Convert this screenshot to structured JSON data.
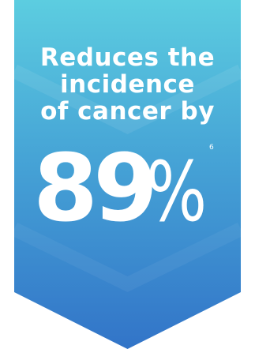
{
  "banner": {
    "headline_lines": [
      "Reduces the",
      "incidence",
      "of cancer by"
    ],
    "stat_value": "89",
    "stat_unit": "%",
    "footnote_ref": "6",
    "colors": {
      "top": "#5ccde0",
      "bottom": "#3274c8",
      "text": "#ffffff"
    }
  }
}
